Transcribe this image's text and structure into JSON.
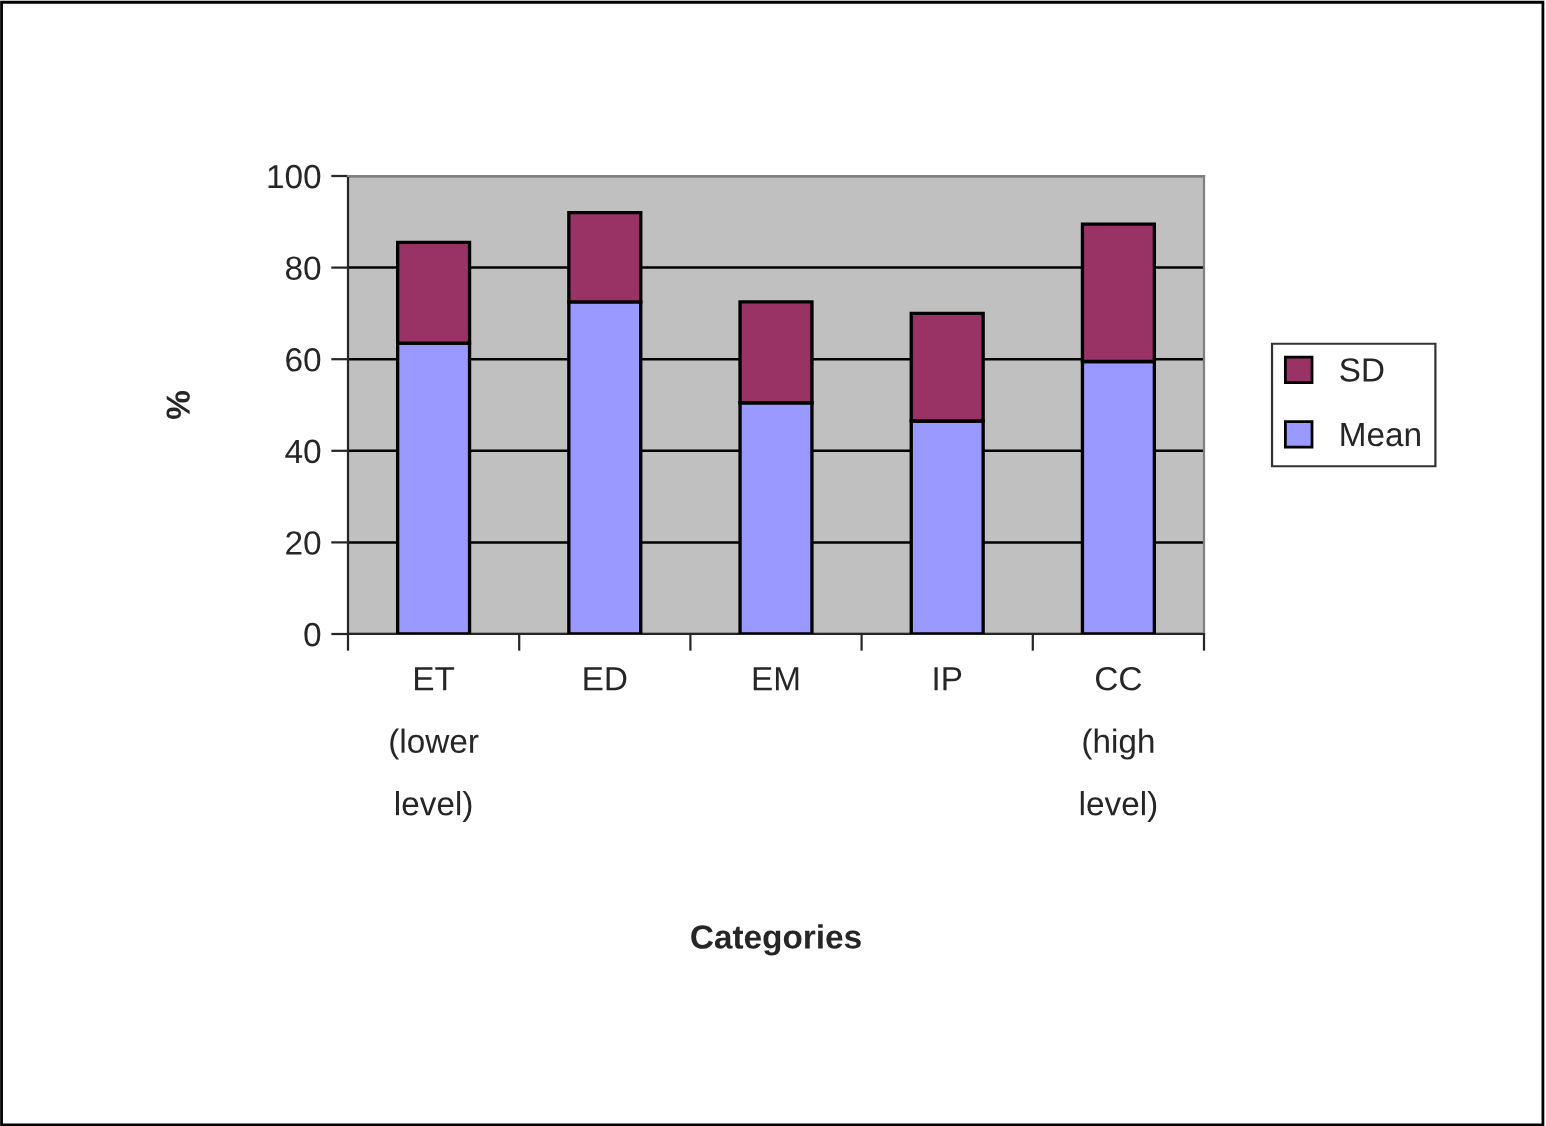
{
  "chart_data": {
    "type": "bar",
    "stacked": true,
    "ylabel": "%",
    "xlabel": "Categories",
    "categories": [
      "ET\n(lower\nlevel)",
      "ED",
      "EM",
      "IP",
      "CC\n(high\nlevel)"
    ],
    "series": [
      {
        "name": "Mean",
        "color": "#9999ff",
        "values": [
          63.5,
          72.5,
          50.5,
          46.5,
          59.5
        ]
      },
      {
        "name": "SD",
        "color": "#993366",
        "values": [
          22,
          19.5,
          22,
          23.5,
          30
        ]
      }
    ],
    "ylim": [
      0,
      100
    ],
    "yticks": [
      0,
      20,
      40,
      60,
      80,
      100
    ],
    "grid": "y",
    "legend": "right"
  }
}
